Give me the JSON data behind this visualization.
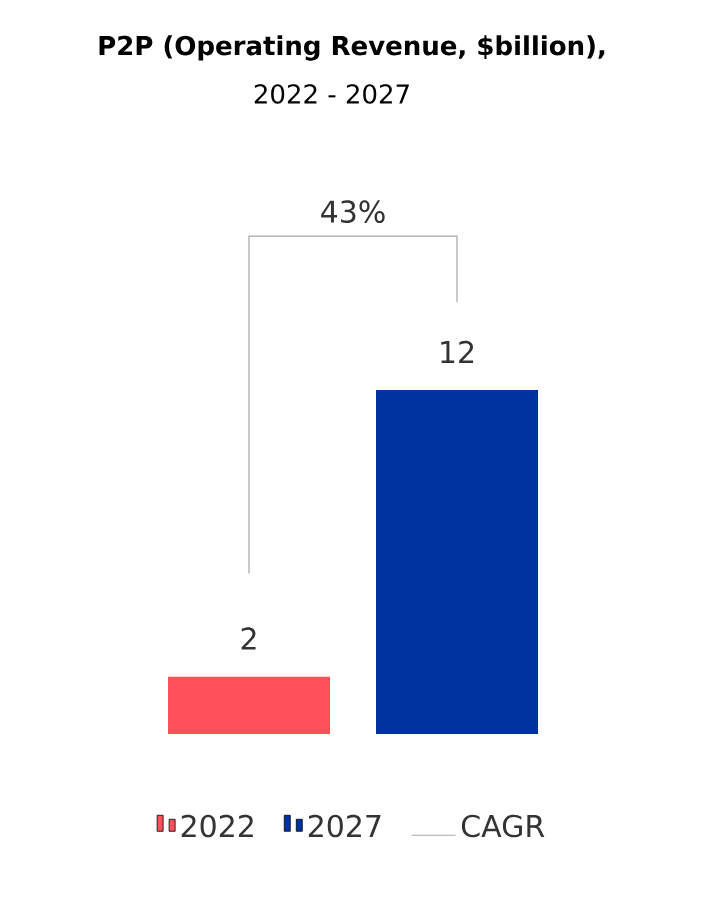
{
  "chart_data": {
    "type": "bar",
    "title": "P2P (Operating Revenue, $billion),",
    "subtitle": "2022 - 2027",
    "categories": [
      null
    ],
    "series": [
      {
        "name": "2022",
        "color": "#ff4f5a",
        "values": [
          2
        ]
      },
      {
        "name": "2027",
        "color": "#0033a0",
        "values": [
          12
        ]
      }
    ],
    "data_labels": true,
    "legend": "bottom",
    "annotations": [
      "43%",
      "CAGR"
    ]
  }
}
